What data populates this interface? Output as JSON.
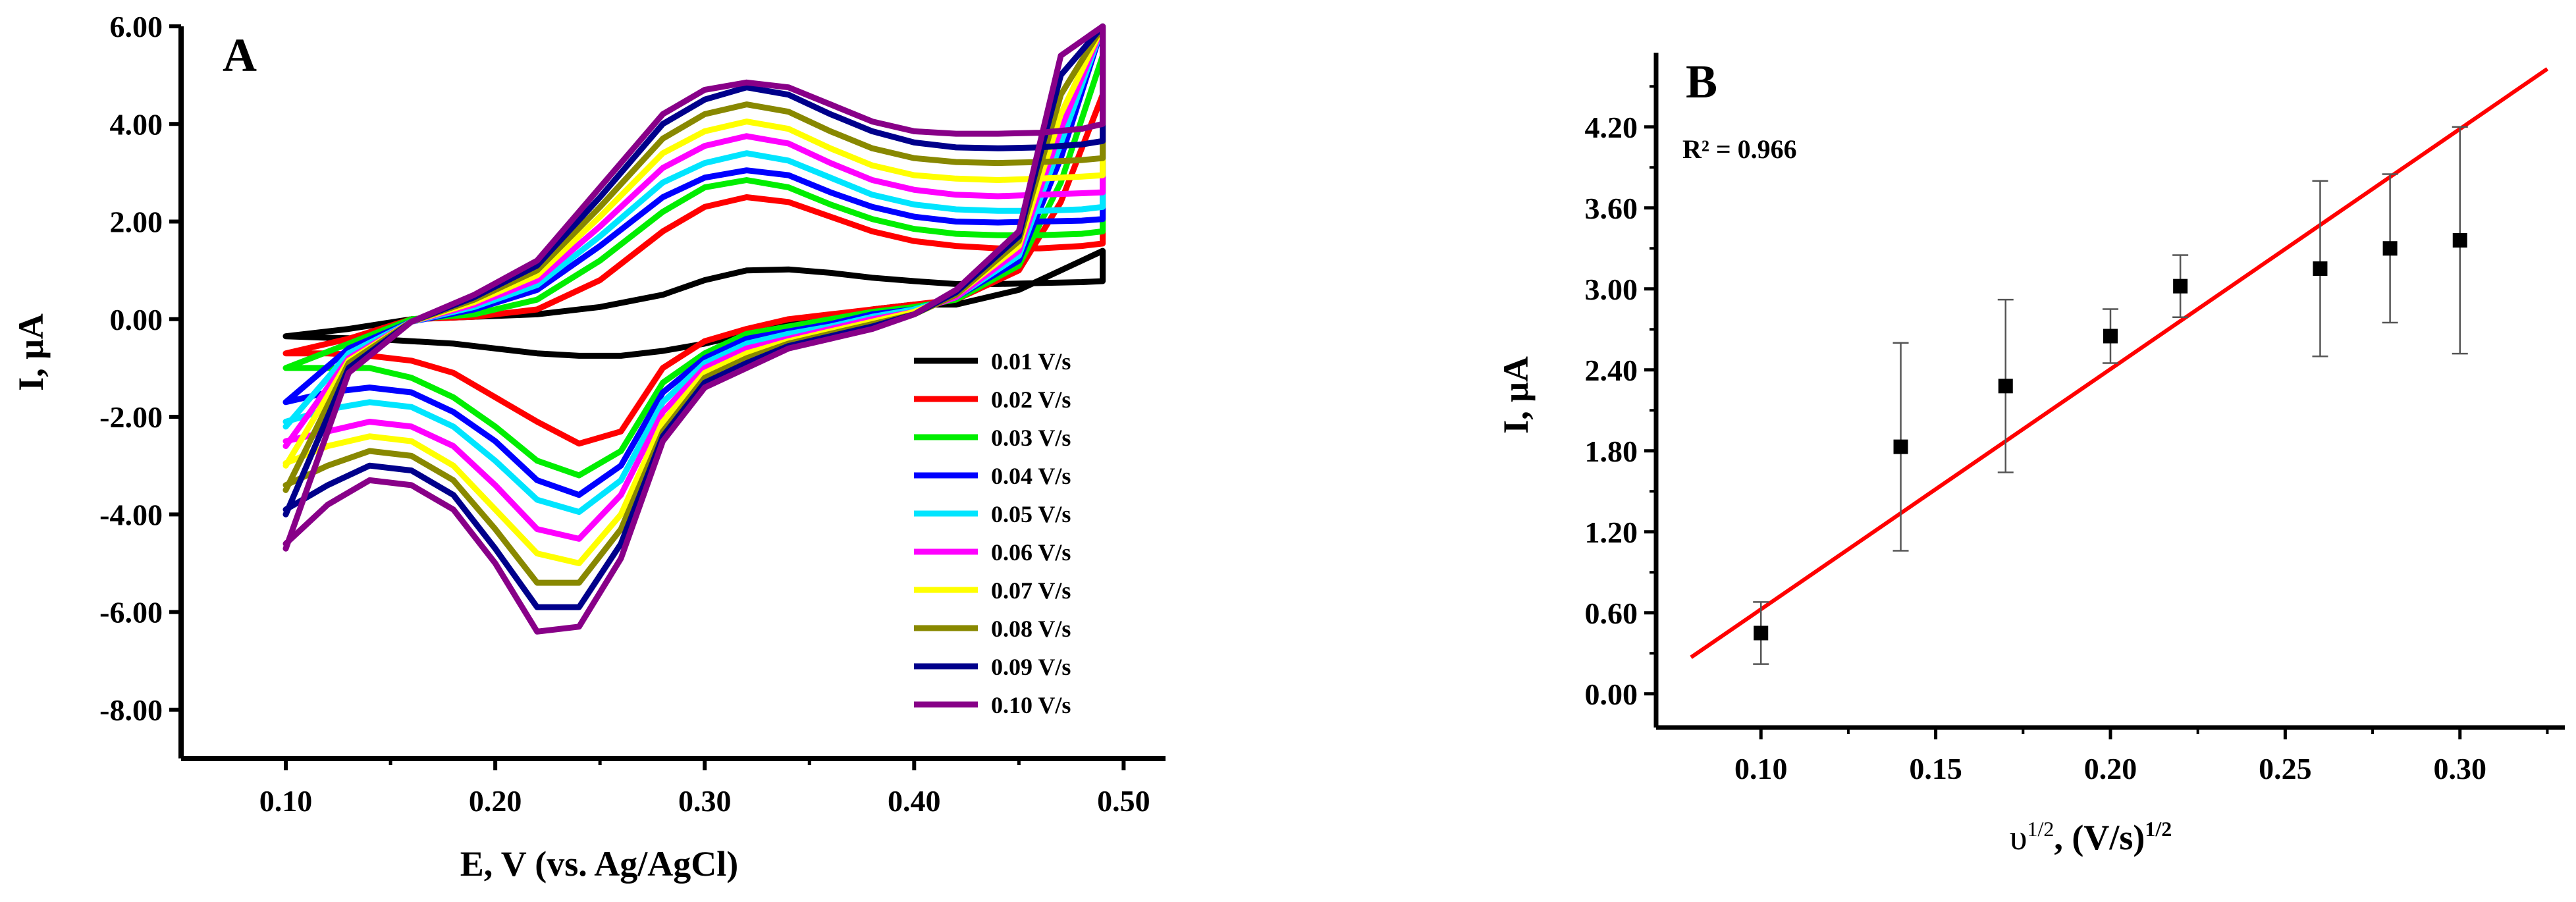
{
  "chart_data": [
    {
      "type": "line",
      "panel": "A",
      "xlabel": "E, V (vs. Ag/AgCl)",
      "ylabel": "I, μA",
      "xlim": [
        0.05,
        0.52
      ],
      "ylim": [
        -9.0,
        6.0
      ],
      "x_ticks": [
        0.1,
        0.2,
        0.3,
        0.4,
        0.5
      ],
      "x_tick_labels": [
        "0.10",
        "0.20",
        "0.30",
        "0.40",
        "0.50"
      ],
      "y_ticks": [
        6,
        4,
        2,
        0,
        -2,
        -4,
        -6,
        -8
      ],
      "y_tick_labels": [
        "6.00",
        "4.00",
        "2.00",
        "0.00",
        "-2.00",
        "-4.00",
        "-6.00",
        "-8.00"
      ],
      "legend_position": "bottom-right",
      "note": "Cyclic voltammograms; each curve is a closed loop. forward = anodic sweep 0.10 to 0.49 V, reverse = cathodic sweep 0.49 to 0.10 V.",
      "x_forward": [
        0.1,
        0.13,
        0.16,
        0.19,
        0.22,
        0.25,
        0.28,
        0.3,
        0.32,
        0.34,
        0.36,
        0.38,
        0.4,
        0.42,
        0.44,
        0.46,
        0.48,
        0.49
      ],
      "x_reverse": [
        0.49,
        0.47,
        0.45,
        0.42,
        0.4,
        0.38,
        0.36,
        0.34,
        0.32,
        0.3,
        0.28,
        0.26,
        0.24,
        0.22,
        0.2,
        0.18,
        0.16,
        0.14,
        0.12,
        0.1
      ],
      "series": [
        {
          "name": "0.01 V/s",
          "color": "#000000",
          "forward": [
            -0.35,
            -0.2,
            0.0,
            0.05,
            0.1,
            0.25,
            0.5,
            0.8,
            1.0,
            1.02,
            0.95,
            0.85,
            0.78,
            0.72,
            0.72,
            0.74,
            0.76,
            0.78
          ],
          "reverse": [
            1.4,
            1.0,
            0.6,
            0.3,
            0.3,
            0.2,
            0.0,
            -0.1,
            -0.3,
            -0.5,
            -0.65,
            -0.75,
            -0.75,
            -0.7,
            -0.6,
            -0.5,
            -0.45,
            -0.4,
            -0.38,
            -0.35
          ]
        },
        {
          "name": "0.02 V/s",
          "color": "#ff0000",
          "forward": [
            -0.7,
            -0.4,
            0.0,
            0.05,
            0.2,
            0.8,
            1.8,
            2.3,
            2.5,
            2.4,
            2.1,
            1.8,
            1.6,
            1.5,
            1.45,
            1.45,
            1.5,
            1.55
          ],
          "reverse": [
            4.6,
            2.4,
            1.0,
            0.4,
            0.3,
            0.2,
            0.1,
            0.0,
            -0.2,
            -0.45,
            -1.0,
            -2.3,
            -2.55,
            -2.1,
            -1.6,
            -1.1,
            -0.85,
            -0.75,
            -0.7,
            -0.7
          ]
        },
        {
          "name": "0.03 V/s",
          "color": "#00ee00",
          "forward": [
            -1.0,
            -0.5,
            0.0,
            0.1,
            0.4,
            1.2,
            2.2,
            2.7,
            2.85,
            2.7,
            2.35,
            2.05,
            1.85,
            1.75,
            1.72,
            1.72,
            1.75,
            1.8
          ],
          "reverse": [
            5.4,
            2.8,
            1.1,
            0.4,
            0.25,
            0.15,
            0.0,
            -0.15,
            -0.3,
            -0.7,
            -1.3,
            -2.7,
            -3.2,
            -2.9,
            -2.2,
            -1.6,
            -1.2,
            -1.0,
            -1.0,
            -1.0
          ]
        },
        {
          "name": "0.04 V/s",
          "color": "#0000ff",
          "forward": [
            -1.7,
            -0.6,
            -0.05,
            0.2,
            0.6,
            1.5,
            2.5,
            2.9,
            3.05,
            2.95,
            2.6,
            2.3,
            2.1,
            2.0,
            1.98,
            2.0,
            2.02,
            2.05
          ],
          "reverse": [
            6.0,
            3.3,
            1.2,
            0.45,
            0.2,
            0.1,
            -0.1,
            -0.25,
            -0.4,
            -0.8,
            -1.5,
            -3.0,
            -3.6,
            -3.3,
            -2.5,
            -1.9,
            -1.5,
            -1.4,
            -1.5,
            -1.7
          ]
        },
        {
          "name": "0.05 V/s",
          "color": "#00e5ff",
          "forward": [
            -2.2,
            -0.7,
            -0.05,
            0.25,
            0.7,
            1.7,
            2.8,
            3.2,
            3.4,
            3.25,
            2.9,
            2.55,
            2.35,
            2.25,
            2.22,
            2.22,
            2.25,
            2.3
          ],
          "reverse": [
            6.0,
            3.6,
            1.3,
            0.45,
            0.2,
            0.05,
            -0.15,
            -0.3,
            -0.5,
            -0.9,
            -1.7,
            -3.3,
            -3.95,
            -3.7,
            -2.9,
            -2.2,
            -1.8,
            -1.7,
            -1.85,
            -2.1
          ]
        },
        {
          "name": "0.06 V/s",
          "color": "#ff00ff",
          "forward": [
            -2.6,
            -0.8,
            -0.05,
            0.3,
            0.8,
            1.9,
            3.1,
            3.55,
            3.75,
            3.6,
            3.2,
            2.85,
            2.65,
            2.55,
            2.52,
            2.55,
            2.58,
            2.6
          ],
          "reverse": [
            6.0,
            3.9,
            1.4,
            0.45,
            0.15,
            0.0,
            -0.2,
            -0.4,
            -0.6,
            -1.0,
            -1.9,
            -3.6,
            -4.5,
            -4.3,
            -3.4,
            -2.6,
            -2.2,
            -2.1,
            -2.3,
            -2.5
          ]
        },
        {
          "name": "0.07 V/s",
          "color": "#ffff00",
          "forward": [
            -3.0,
            -0.85,
            -0.05,
            0.35,
            0.9,
            2.1,
            3.4,
            3.85,
            4.05,
            3.9,
            3.5,
            3.15,
            2.95,
            2.88,
            2.85,
            2.88,
            2.92,
            2.95
          ],
          "reverse": [
            6.0,
            4.2,
            1.5,
            0.5,
            0.15,
            -0.05,
            -0.25,
            -0.45,
            -0.7,
            -1.1,
            -2.1,
            -4.0,
            -5.0,
            -4.8,
            -3.9,
            -3.0,
            -2.5,
            -2.4,
            -2.6,
            -2.95
          ]
        },
        {
          "name": "0.08 V/s",
          "color": "#888800",
          "forward": [
            -3.5,
            -0.9,
            -0.05,
            0.4,
            1.0,
            2.3,
            3.7,
            4.2,
            4.4,
            4.25,
            3.85,
            3.5,
            3.3,
            3.22,
            3.2,
            3.22,
            3.26,
            3.3
          ],
          "reverse": [
            6.0,
            4.6,
            1.6,
            0.5,
            0.1,
            -0.1,
            -0.3,
            -0.5,
            -0.8,
            -1.2,
            -2.3,
            -4.3,
            -5.4,
            -5.4,
            -4.3,
            -3.3,
            -2.8,
            -2.7,
            -3.0,
            -3.4
          ]
        },
        {
          "name": "0.09 V/s",
          "color": "#00008b",
          "forward": [
            -4.0,
            -1.0,
            -0.05,
            0.45,
            1.1,
            2.5,
            4.0,
            4.5,
            4.75,
            4.6,
            4.2,
            3.85,
            3.62,
            3.52,
            3.5,
            3.52,
            3.58,
            3.65
          ],
          "reverse": [
            6.0,
            5.0,
            1.7,
            0.55,
            0.1,
            -0.15,
            -0.35,
            -0.55,
            -0.9,
            -1.3,
            -2.4,
            -4.6,
            -5.9,
            -5.9,
            -4.7,
            -3.6,
            -3.1,
            -3.0,
            -3.4,
            -3.9
          ]
        },
        {
          "name": "0.10 V/s",
          "color": "#880088",
          "forward": [
            -4.7,
            -1.1,
            -0.05,
            0.5,
            1.2,
            2.7,
            4.2,
            4.7,
            4.85,
            4.75,
            4.4,
            4.05,
            3.85,
            3.8,
            3.8,
            3.82,
            3.9,
            4.0
          ],
          "reverse": [
            6.0,
            5.4,
            1.8,
            0.6,
            0.1,
            -0.2,
            -0.4,
            -0.6,
            -1.0,
            -1.4,
            -2.5,
            -4.9,
            -6.3,
            -6.4,
            -5.0,
            -3.9,
            -3.4,
            -3.3,
            -3.8,
            -4.6
          ]
        }
      ]
    },
    {
      "type": "scatter",
      "panel": "B",
      "xlabel": "υ",
      "xlabel_superscript": "1/2",
      "xlabel_tail": ", (V/s)",
      "xlabel_tail_superscript": "1/2",
      "ylabel": "I, μA",
      "annotation": "R² = 0.966",
      "xlim": [
        0.07,
        0.33
      ],
      "ylim": [
        -0.25,
        4.75
      ],
      "x_ticks": [
        0.1,
        0.15,
        0.2,
        0.25,
        0.3
      ],
      "x_tick_labels": [
        "0.10",
        "0.15",
        "0.20",
        "0.25",
        "0.30"
      ],
      "y_ticks": [
        0.0,
        0.6,
        1.2,
        1.8,
        2.4,
        3.0,
        3.6,
        4.2
      ],
      "y_tick_labels": [
        "0.00",
        "0.60",
        "1.20",
        "1.80",
        "2.40",
        "3.00",
        "3.60",
        "4.20"
      ],
      "points": {
        "x": [
          0.1,
          0.14,
          0.17,
          0.2,
          0.22,
          0.26,
          0.28,
          0.3
        ],
        "y": [
          0.45,
          1.83,
          2.28,
          2.65,
          3.02,
          3.15,
          3.3,
          3.36
        ],
        "err": [
          0.23,
          0.77,
          0.64,
          0.2,
          0.23,
          0.65,
          0.55,
          0.84
        ]
      },
      "fit_line": {
        "x": [
          0.08,
          0.325
        ],
        "y": [
          0.27,
          4.63
        ],
        "color": "#ff0000"
      }
    }
  ]
}
